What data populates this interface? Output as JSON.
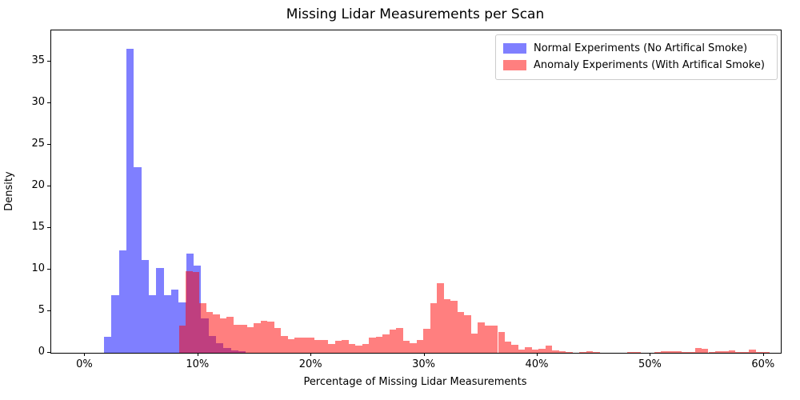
{
  "chart": {
    "title": "Missing Lidar Measurements per Scan",
    "xlabel": "Percentage of Missing Lidar Measurements",
    "ylabel": "Density"
  },
  "legend": {
    "items": [
      {
        "label": "Normal Experiments (No Artifical Smoke)",
        "color": "rgba(0,0,255,0.5)"
      },
      {
        "label": "Anomaly Experiments (With Artifical Smoke)",
        "color": "rgba(255,0,0,0.5)"
      }
    ]
  },
  "chart_data": {
    "type": "bar",
    "subtype": "overlapping-histogram",
    "title": "Missing Lidar Measurements per Scan",
    "xlabel": "Percentage of Missing Lidar Measurements",
    "ylabel": "Density",
    "xlim": [
      -3.0,
      61.5
    ],
    "ylim": [
      0,
      38.8
    ],
    "grid": false,
    "legend_position": "upper right",
    "x_ticks": [
      {
        "value": 0,
        "label": "0%"
      },
      {
        "value": 10,
        "label": "10%"
      },
      {
        "value": 20,
        "label": "20%"
      },
      {
        "value": 30,
        "label": "30%"
      },
      {
        "value": 40,
        "label": "40%"
      },
      {
        "value": 50,
        "label": "50%"
      },
      {
        "value": 60,
        "label": "60%"
      }
    ],
    "y_ticks": [
      {
        "value": 0,
        "label": "0"
      },
      {
        "value": 5,
        "label": "5"
      },
      {
        "value": 10,
        "label": "10"
      },
      {
        "value": 15,
        "label": "15"
      },
      {
        "value": 20,
        "label": "20"
      },
      {
        "value": 25,
        "label": "25"
      },
      {
        "value": 30,
        "label": "30"
      },
      {
        "value": 35,
        "label": "35"
      }
    ],
    "series": [
      {
        "id": "normal",
        "name": "Normal Experiments (No Artifical Smoke)",
        "color": "rgba(0,0,255,0.5)",
        "bin_start_pct": 1.66,
        "bin_width_pct": 0.66,
        "densities": [
          1.9,
          6.9,
          12.3,
          36.6,
          22.3,
          11.2,
          6.9,
          10.2,
          6.9,
          7.6,
          6.1,
          11.9,
          10.5,
          4.1,
          2.0,
          1.2,
          0.55,
          0.3,
          0.15
        ]
      },
      {
        "id": "anomaly",
        "name": "Anomaly Experiments (With Artifical Smoke)",
        "color": "rgba(255,0,0,0.5)",
        "bin_start_pct": 8.3,
        "bin_width_pct": 0.6,
        "densities": [
          3.3,
          9.8,
          9.7,
          6.0,
          4.9,
          4.6,
          4.1,
          4.35,
          3.4,
          3.4,
          3.1,
          3.6,
          3.9,
          3.75,
          3.0,
          2.0,
          1.6,
          1.8,
          1.8,
          1.85,
          1.5,
          1.5,
          1.05,
          1.45,
          1.5,
          1.1,
          0.9,
          1.05,
          1.8,
          1.95,
          2.2,
          2.8,
          3.0,
          1.45,
          1.2,
          1.5,
          2.9,
          6.0,
          8.4,
          6.5,
          6.3,
          4.9,
          4.5,
          2.3,
          3.7,
          3.3,
          3.3,
          2.5,
          1.35,
          1.0,
          0.35,
          0.7,
          0.35,
          0.45,
          0.9,
          0.25,
          0.2,
          0.05,
          0,
          0.05,
          0.15,
          0.05,
          0,
          0,
          0,
          0,
          0.1,
          0.05,
          0,
          0,
          0.05,
          0.15,
          0.2,
          0.15,
          0.1,
          0.1,
          0.55,
          0.5,
          0.1,
          0.15,
          0.15,
          0.25,
          0.1,
          0.1,
          0.35,
          0.1,
          0.05
        ]
      }
    ]
  }
}
